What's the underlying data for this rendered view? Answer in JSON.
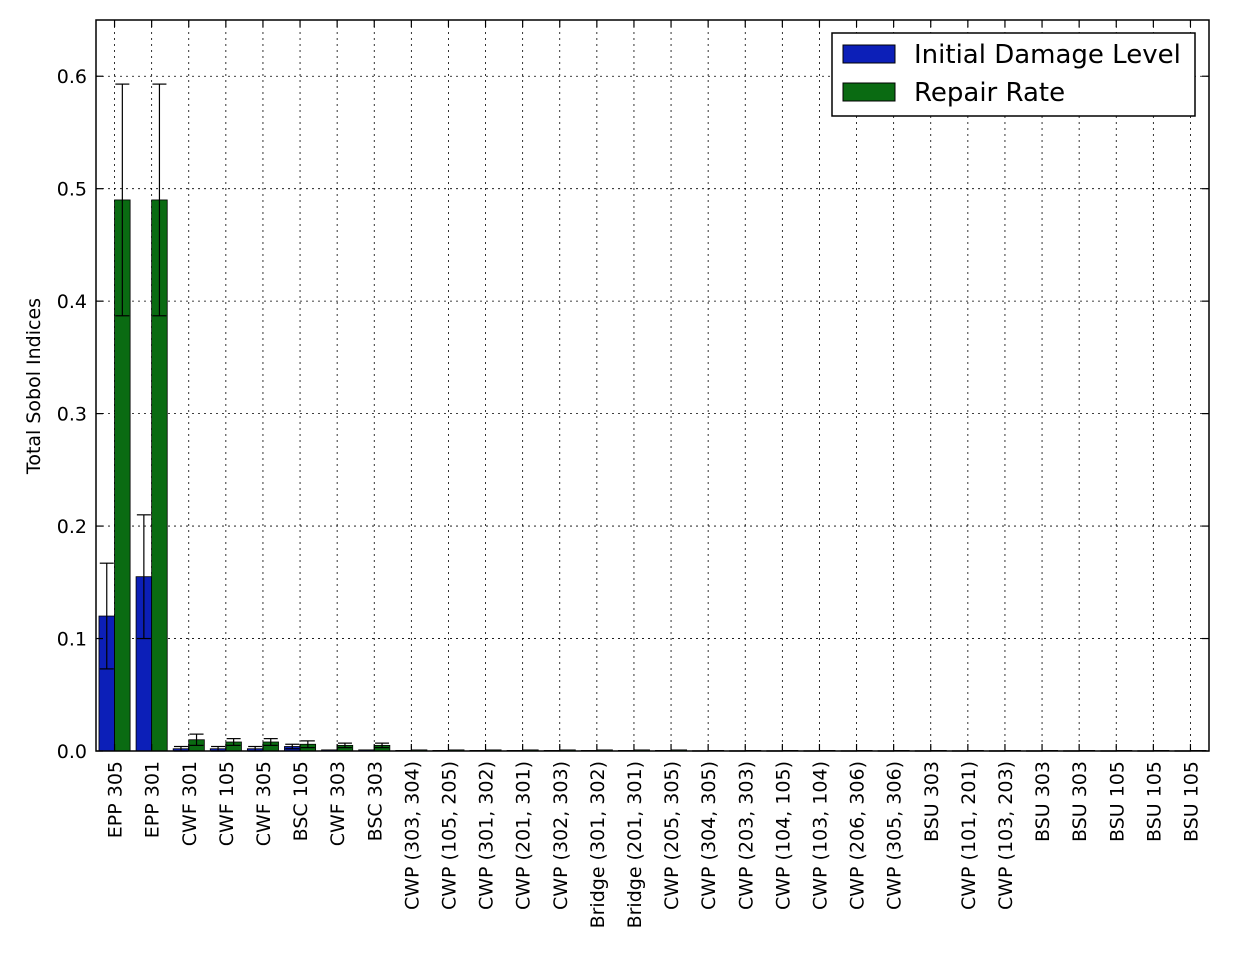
{
  "chart_data": {
    "type": "bar",
    "title": "",
    "xlabel": "",
    "ylabel": "Total Sobol Indices",
    "ylim": [
      0,
      0.65
    ],
    "yticks": [
      "0.0",
      "0.1",
      "0.2",
      "0.3",
      "0.4",
      "0.5",
      "0.6"
    ],
    "grid": true,
    "legend_position": "top-right",
    "categories": [
      "EPP 305",
      "EPP 301",
      "CWF 301",
      "CWF 105",
      "CWF 305",
      "BSC 105",
      "CWF 303",
      "BSC 303",
      "CWP (303, 304)",
      "CWP (105, 205)",
      "CWP (301, 302)",
      "CWP (201, 301)",
      "CWP (302, 303)",
      "Bridge (301, 302)",
      "Bridge (201, 301)",
      "CWP (205, 305)",
      "CWP (304, 305)",
      "CWP (203, 303)",
      "CWP (104, 105)",
      "CWP (103, 104)",
      "CWP (206, 306)",
      "CWP (305, 306)",
      "BSU 303",
      "CWP (101, 201)",
      "CWP (103, 203)",
      "BSU 303",
      "BSU 303",
      "BSU 105",
      "BSU 105",
      "BSU 105"
    ],
    "series": [
      {
        "name": "Initial Damage Level",
        "color": "#0c1fb8",
        "values": [
          0.12,
          0.155,
          0.002,
          0.002,
          0.002,
          0.004,
          0.001,
          0.001,
          0.0005,
          0.0005,
          0.0005,
          0.0005,
          0.0005,
          0.0005,
          0.0005,
          0.0005,
          0.0003,
          0.0003,
          0.0003,
          0.0003,
          0.0003,
          0.0003,
          0.0003,
          0.0003,
          0.0003,
          0.0003,
          0.0003,
          0.0003,
          0.0003,
          0.0003
        ],
        "errors": [
          0.047,
          0.055,
          0.002,
          0.002,
          0.002,
          0.002,
          0.001,
          0.001,
          0.0005,
          0.0005,
          0.0005,
          0.0005,
          0.0005,
          0.0005,
          0.0005,
          0.0005,
          0.0003,
          0.0003,
          0.0003,
          0.0003,
          0.0003,
          0.0003,
          0.0003,
          0.0003,
          0.0003,
          0.0003,
          0.0003,
          0.0003,
          0.0003,
          0.0003
        ]
      },
      {
        "name": "Repair Rate",
        "color": "#0a6b12",
        "values": [
          0.49,
          0.49,
          0.01,
          0.008,
          0.008,
          0.006,
          0.005,
          0.005,
          0.001,
          0.001,
          0.001,
          0.001,
          0.001,
          0.001,
          0.001,
          0.001,
          0.0005,
          0.0005,
          0.0005,
          0.0005,
          0.0005,
          0.0005,
          0.0005,
          0.0005,
          0.0005,
          0.0005,
          0.0005,
          0.0005,
          0.0005,
          0.0005
        ],
        "errors": [
          0.103,
          0.103,
          0.005,
          0.003,
          0.003,
          0.003,
          0.002,
          0.002,
          0.0005,
          0.0005,
          0.0005,
          0.0005,
          0.0005,
          0.0005,
          0.0005,
          0.0005,
          0.0003,
          0.0003,
          0.0003,
          0.0003,
          0.0003,
          0.0003,
          0.0003,
          0.0003,
          0.0003,
          0.0003,
          0.0003,
          0.0003,
          0.0003,
          0.0003
        ]
      }
    ]
  }
}
